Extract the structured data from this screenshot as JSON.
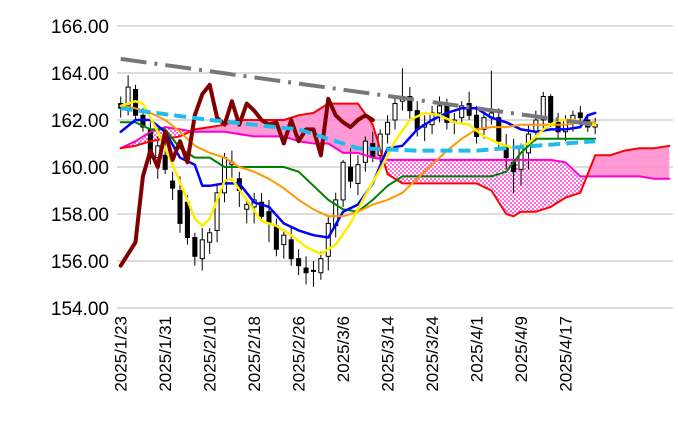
{
  "chart_data": {
    "type": "candlestick",
    "subtype": "ichimoku_with_moving_averages",
    "title": "",
    "xlabel": "",
    "ylabel": "",
    "ylim": [
      154.0,
      166.0
    ],
    "yticks": [
      "154.00",
      "156.00",
      "158.00",
      "160.00",
      "162.00",
      "164.00",
      "166.00"
    ],
    "xtick_labels": [
      "2025/1/23",
      "2025/1/31",
      "2025/2/10",
      "2025/2/18",
      "2025/2/26",
      "2025/3/6",
      "2025/3/14",
      "2025/3/24",
      "2025/4/1",
      "2025/4/9",
      "2025/4/17"
    ],
    "xtick_index": [
      0,
      6,
      12,
      18,
      24,
      30,
      36,
      42,
      48,
      54,
      60
    ],
    "n_days": 65,
    "future_days": 10,
    "grid": "horizontal",
    "colors": {
      "up": "#ffffff",
      "down": "#000000",
      "cloud_bull": "#ff88cc",
      "cloud_bear": "#ff77cc",
      "span_a": "#ff00cc",
      "span_b": "#ff0000",
      "tenkan": "#0000ff",
      "kijun": "#008000",
      "chikou": "#800000",
      "ma_fast": "#ffee00",
      "ma_slow": "#ff9900",
      "trend_dashdot": "#777777",
      "trend_dashed": "#22bbee"
    },
    "candles": [
      [
        162.7,
        163.0,
        162.1,
        162.5
      ],
      [
        162.6,
        163.9,
        162.2,
        163.4
      ],
      [
        163.3,
        163.5,
        162.0,
        162.2
      ],
      [
        162.2,
        162.5,
        161.5,
        161.7
      ],
      [
        161.6,
        161.9,
        160.1,
        160.4
      ],
      [
        160.4,
        161.3,
        159.5,
        160.9
      ],
      [
        160.5,
        161.6,
        159.7,
        159.9
      ],
      [
        159.4,
        159.8,
        158.6,
        159.1
      ],
      [
        159.0,
        159.6,
        157.2,
        157.6
      ],
      [
        158.5,
        158.8,
        156.7,
        157.0
      ],
      [
        157.0,
        157.2,
        155.8,
        156.2
      ],
      [
        156.1,
        157.4,
        155.6,
        156.9
      ],
      [
        156.8,
        157.4,
        156.3,
        157.2
      ],
      [
        157.3,
        159.3,
        156.8,
        158.9
      ],
      [
        158.9,
        160.6,
        158.5,
        160.4
      ],
      [
        160.1,
        160.7,
        159.4,
        160.2
      ],
      [
        159.5,
        159.8,
        158.3,
        159.0
      ],
      [
        158.2,
        158.6,
        157.6,
        158.4
      ],
      [
        158.3,
        158.9,
        157.6,
        158.6
      ],
      [
        158.5,
        158.9,
        157.8,
        157.9
      ],
      [
        158.1,
        158.6,
        156.8,
        157.6
      ],
      [
        157.5,
        157.8,
        156.2,
        156.5
      ],
      [
        156.7,
        157.3,
        156.1,
        157.1
      ],
      [
        156.9,
        157.4,
        155.8,
        156.1
      ],
      [
        156.1,
        156.5,
        155.4,
        155.8
      ],
      [
        155.7,
        156.2,
        155.0,
        155.5
      ],
      [
        155.6,
        156.0,
        154.9,
        155.6
      ],
      [
        155.5,
        156.4,
        155.2,
        156.1
      ],
      [
        156.2,
        157.9,
        155.6,
        157.6
      ],
      [
        157.5,
        158.9,
        157.0,
        158.6
      ],
      [
        158.6,
        160.3,
        158.3,
        160.2
      ],
      [
        160.0,
        160.8,
        159.1,
        159.4
      ],
      [
        159.3,
        160.5,
        158.8,
        160.1
      ],
      [
        160.2,
        161.3,
        159.8,
        161.1
      ],
      [
        161.0,
        161.5,
        160.2,
        160.4
      ],
      [
        160.5,
        161.6,
        160.2,
        161.4
      ],
      [
        161.4,
        162.2,
        161.0,
        161.9
      ],
      [
        162.0,
        163.0,
        161.6,
        162.7
      ],
      [
        162.8,
        164.2,
        162.4,
        163.0
      ],
      [
        163.0,
        163.4,
        162.0,
        162.4
      ],
      [
        162.4,
        162.8,
        161.3,
        161.6
      ],
      [
        161.7,
        162.2,
        161.1,
        161.8
      ],
      [
        161.8,
        162.6,
        161.4,
        162.3
      ],
      [
        162.3,
        163.0,
        161.9,
        162.6
      ],
      [
        162.6,
        162.9,
        161.6,
        161.9
      ],
      [
        161.9,
        162.3,
        161.4,
        162.0
      ],
      [
        162.1,
        162.8,
        161.9,
        162.6
      ],
      [
        162.7,
        163.2,
        162.0,
        162.2
      ],
      [
        162.2,
        162.6,
        161.0,
        161.3
      ],
      [
        161.6,
        162.3,
        161.2,
        162.1
      ],
      [
        162.1,
        164.1,
        161.8,
        162.3
      ],
      [
        162.1,
        162.5,
        160.8,
        161.1
      ],
      [
        160.9,
        161.4,
        159.9,
        160.4
      ],
      [
        160.2,
        161.2,
        158.9,
        159.8
      ],
      [
        159.9,
        161.0,
        159.2,
        160.9
      ],
      [
        160.6,
        161.8,
        159.9,
        161.4
      ],
      [
        161.5,
        162.4,
        161.1,
        162.0
      ],
      [
        162.0,
        163.2,
        161.5,
        163.0
      ],
      [
        163.0,
        163.1,
        161.7,
        161.9
      ],
      [
        161.9,
        162.3,
        161.2,
        161.5
      ],
      [
        161.5,
        162.2,
        161.1,
        162.0
      ],
      [
        161.9,
        162.4,
        161.5,
        162.2
      ],
      [
        162.3,
        162.6,
        161.8,
        162.1
      ],
      [
        162.0,
        162.2,
        161.5,
        161.7
      ],
      [
        161.7,
        162.1,
        161.4,
        161.8
      ]
    ],
    "ichimoku_span_a": [
      [
        0,
        160.8
      ],
      [
        2,
        161.1
      ],
      [
        4,
        161.5
      ],
      [
        6,
        161.7
      ],
      [
        8,
        161.6
      ],
      [
        10,
        161.5
      ],
      [
        12,
        161.5
      ],
      [
        14,
        161.5
      ],
      [
        16,
        161.4
      ],
      [
        18,
        161.3
      ],
      [
        20,
        161.3
      ],
      [
        22,
        161.3
      ],
      [
        24,
        161.1
      ],
      [
        26,
        161.0
      ],
      [
        28,
        161.0
      ],
      [
        30,
        160.6
      ],
      [
        32,
        160.6
      ],
      [
        34,
        160.4
      ],
      [
        36,
        160.3
      ],
      [
        38,
        160.3
      ],
      [
        40,
        160.3
      ],
      [
        42,
        160.3
      ],
      [
        44,
        160.3
      ],
      [
        46,
        160.3
      ],
      [
        48,
        160.3
      ],
      [
        50,
        160.3
      ],
      [
        52,
        160.3
      ],
      [
        54,
        160.3
      ],
      [
        56,
        160.3
      ],
      [
        58,
        160.3
      ],
      [
        60,
        160.2
      ],
      [
        62,
        159.6
      ],
      [
        64,
        159.6
      ],
      [
        66,
        159.6
      ],
      [
        68,
        159.6
      ],
      [
        70,
        159.6
      ],
      [
        72,
        159.5
      ],
      [
        74,
        159.5
      ]
    ],
    "ichimoku_span_b": [
      [
        0,
        160.8
      ],
      [
        2,
        160.9
      ],
      [
        4,
        161.1
      ],
      [
        6,
        161.2
      ],
      [
        8,
        161.3
      ],
      [
        10,
        161.6
      ],
      [
        12,
        161.7
      ],
      [
        14,
        161.8
      ],
      [
        16,
        162.0
      ],
      [
        18,
        162.0
      ],
      [
        20,
        162.0
      ],
      [
        22,
        162.0
      ],
      [
        24,
        162.2
      ],
      [
        26,
        162.3
      ],
      [
        28,
        162.7
      ],
      [
        30,
        162.7
      ],
      [
        32,
        162.7
      ],
      [
        34,
        161.8
      ],
      [
        36,
        159.7
      ],
      [
        38,
        159.3
      ],
      [
        40,
        159.3
      ],
      [
        42,
        159.3
      ],
      [
        44,
        159.3
      ],
      [
        46,
        159.3
      ],
      [
        48,
        159.3
      ],
      [
        50,
        159.0
      ],
      [
        52,
        158.0
      ],
      [
        53,
        157.9
      ],
      [
        54,
        158.1
      ],
      [
        56,
        158.1
      ],
      [
        58,
        158.3
      ],
      [
        60,
        158.7
      ],
      [
        62,
        158.9
      ],
      [
        64,
        160.5
      ],
      [
        66,
        160.5
      ],
      [
        68,
        160.7
      ],
      [
        70,
        160.8
      ],
      [
        72,
        160.8
      ],
      [
        74,
        160.9
      ]
    ],
    "tenkan": [
      [
        0,
        161.5
      ],
      [
        2,
        162.0
      ],
      [
        4,
        162.0
      ],
      [
        6,
        161.5
      ],
      [
        8,
        160.4
      ],
      [
        10,
        160.1
      ],
      [
        11,
        159.2
      ],
      [
        12,
        159.2
      ],
      [
        14,
        159.3
      ],
      [
        16,
        159.3
      ],
      [
        18,
        158.5
      ],
      [
        20,
        158.3
      ],
      [
        22,
        157.6
      ],
      [
        24,
        157.3
      ],
      [
        26,
        157.1
      ],
      [
        28,
        157.0
      ],
      [
        30,
        158.1
      ],
      [
        32,
        158.4
      ],
      [
        34,
        159.3
      ],
      [
        36,
        160.8
      ],
      [
        38,
        160.9
      ],
      [
        40,
        161.6
      ],
      [
        42,
        162.0
      ],
      [
        44,
        162.3
      ],
      [
        46,
        162.5
      ],
      [
        48,
        162.5
      ],
      [
        50,
        162.1
      ],
      [
        52,
        161.9
      ],
      [
        54,
        161.6
      ],
      [
        56,
        161.5
      ],
      [
        58,
        161.6
      ],
      [
        60,
        161.6
      ],
      [
        62,
        161.7
      ],
      [
        63,
        162.2
      ],
      [
        64,
        162.3
      ]
    ],
    "kijun": [
      [
        0,
        161.9
      ],
      [
        2,
        161.9
      ],
      [
        4,
        161.6
      ],
      [
        6,
        161.6
      ],
      [
        8,
        160.8
      ],
      [
        10,
        160.4
      ],
      [
        12,
        160.4
      ],
      [
        14,
        160.0
      ],
      [
        16,
        160.0
      ],
      [
        18,
        160.0
      ],
      [
        20,
        160.0
      ],
      [
        22,
        160.0
      ],
      [
        24,
        159.8
      ],
      [
        26,
        159.2
      ],
      [
        28,
        158.6
      ],
      [
        30,
        158.2
      ],
      [
        32,
        158.1
      ],
      [
        34,
        158.6
      ],
      [
        36,
        159.2
      ],
      [
        38,
        159.6
      ],
      [
        40,
        159.6
      ],
      [
        42,
        159.6
      ],
      [
        44,
        159.6
      ],
      [
        46,
        159.6
      ],
      [
        48,
        159.6
      ],
      [
        50,
        159.6
      ],
      [
        52,
        159.8
      ],
      [
        54,
        160.6
      ],
      [
        56,
        161.2
      ],
      [
        58,
        161.2
      ],
      [
        60,
        161.2
      ],
      [
        62,
        161.2
      ],
      [
        64,
        161.2
      ]
    ],
    "chikou": [
      [
        0,
        155.8
      ],
      [
        2,
        156.8
      ],
      [
        3,
        159.6
      ],
      [
        4,
        160.7
      ],
      [
        5,
        160.0
      ],
      [
        6,
        161.5
      ],
      [
        7,
        160.3
      ],
      [
        8,
        161.1
      ],
      [
        9,
        160.2
      ],
      [
        10,
        162.2
      ],
      [
        11,
        163.1
      ],
      [
        12,
        163.5
      ],
      [
        13,
        162.1
      ],
      [
        14,
        161.8
      ],
      [
        15,
        162.8
      ],
      [
        16,
        161.8
      ],
      [
        17,
        162.7
      ],
      [
        18,
        162.4
      ],
      [
        19,
        162.0
      ],
      [
        20,
        161.8
      ],
      [
        21,
        161.9
      ],
      [
        22,
        161.0
      ],
      [
        23,
        162.0
      ],
      [
        24,
        161.1
      ],
      [
        25,
        161.6
      ],
      [
        26,
        161.6
      ],
      [
        27,
        160.5
      ],
      [
        28,
        162.9
      ],
      [
        29,
        162.2
      ],
      [
        30,
        161.9
      ],
      [
        31,
        161.7
      ],
      [
        32,
        162.0
      ],
      [
        33,
        162.2
      ],
      [
        34,
        162.0
      ]
    ],
    "ma_fast": [
      [
        0,
        162.6
      ],
      [
        2,
        162.8
      ],
      [
        3,
        162.7
      ],
      [
        5,
        161.5
      ],
      [
        7,
        160.1
      ],
      [
        9,
        158.6
      ],
      [
        10,
        157.8
      ],
      [
        11,
        157.5
      ],
      [
        12,
        157.8
      ],
      [
        13,
        158.6
      ],
      [
        14,
        159.4
      ],
      [
        15,
        159.5
      ],
      [
        17,
        158.6
      ],
      [
        19,
        157.7
      ],
      [
        21,
        157.5
      ],
      [
        23,
        157.1
      ],
      [
        25,
        156.6
      ],
      [
        27,
        156.3
      ],
      [
        29,
        156.7
      ],
      [
        31,
        157.6
      ],
      [
        33,
        158.8
      ],
      [
        35,
        159.9
      ],
      [
        37,
        161.1
      ],
      [
        39,
        162.0
      ],
      [
        41,
        162.3
      ],
      [
        43,
        162.2
      ],
      [
        45,
        161.9
      ],
      [
        47,
        161.8
      ],
      [
        49,
        161.3
      ],
      [
        51,
        161.0
      ],
      [
        53,
        160.8
      ],
      [
        55,
        161.0
      ],
      [
        57,
        161.6
      ],
      [
        59,
        162.0
      ],
      [
        61,
        162.0
      ],
      [
        63,
        161.8
      ],
      [
        64,
        161.8
      ]
    ],
    "ma_slow": [
      [
        0,
        162.6
      ],
      [
        2,
        162.5
      ],
      [
        4,
        162.3
      ],
      [
        6,
        162.0
      ],
      [
        8,
        161.5
      ],
      [
        10,
        160.9
      ],
      [
        12,
        160.6
      ],
      [
        14,
        160.4
      ],
      [
        16,
        160.0
      ],
      [
        18,
        159.8
      ],
      [
        20,
        159.5
      ],
      [
        22,
        159.1
      ],
      [
        24,
        158.6
      ],
      [
        26,
        158.2
      ],
      [
        28,
        157.9
      ],
      [
        30,
        157.9
      ],
      [
        32,
        158.1
      ],
      [
        34,
        158.4
      ],
      [
        36,
        158.6
      ],
      [
        38,
        158.9
      ],
      [
        40,
        159.5
      ],
      [
        42,
        160.1
      ],
      [
        44,
        160.7
      ],
      [
        46,
        161.2
      ],
      [
        48,
        161.6
      ],
      [
        50,
        161.7
      ],
      [
        52,
        161.7
      ],
      [
        54,
        161.8
      ],
      [
        56,
        161.8
      ],
      [
        58,
        161.8
      ],
      [
        60,
        161.8
      ],
      [
        62,
        161.9
      ],
      [
        64,
        161.9
      ]
    ],
    "trend_dashdot": [
      [
        0,
        164.6
      ],
      [
        64,
        161.8
      ]
    ],
    "trend_dashed": [
      [
        0,
        162.5
      ],
      [
        12,
        162.0
      ],
      [
        24,
        161.6
      ],
      [
        32,
        160.8
      ],
      [
        40,
        160.7
      ],
      [
        48,
        160.7
      ],
      [
        56,
        160.9
      ],
      [
        64,
        161.1
      ]
    ]
  }
}
